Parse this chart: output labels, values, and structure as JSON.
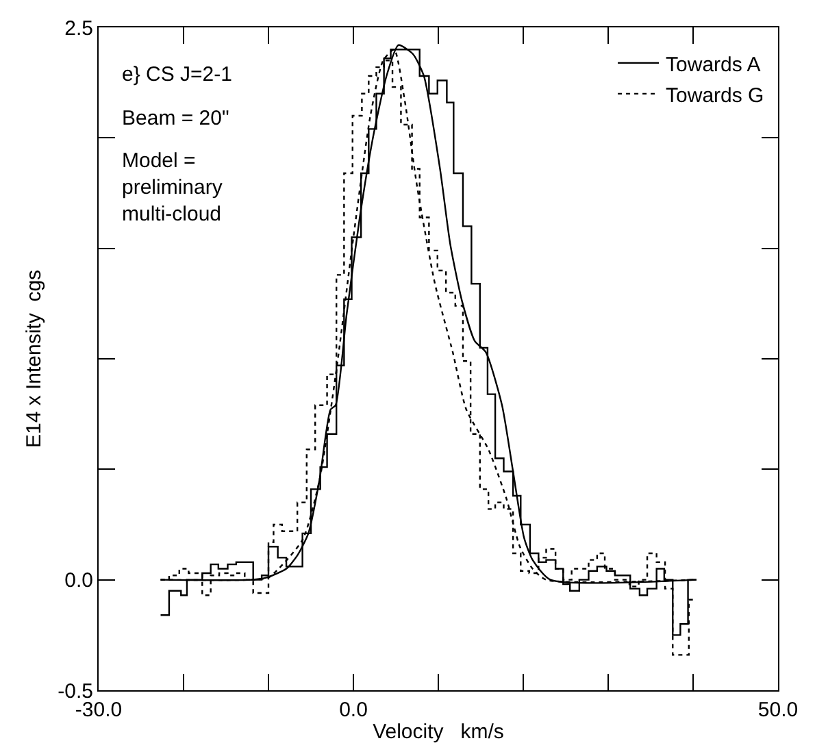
{
  "chart_data": {
    "type": "step",
    "xlabel": "Velocity   km/s",
    "ylabel": "E14 x Intensity  cgs",
    "xlim": [
      -30,
      50
    ],
    "xticks": [
      {
        "value": -30,
        "label": "-30.0"
      },
      {
        "value": -20,
        "label": null
      },
      {
        "value": -10,
        "label": null
      },
      {
        "value": 0,
        "label": "0.0"
      },
      {
        "value": 10,
        "label": null
      },
      {
        "value": 20,
        "label": null
      },
      {
        "value": 30,
        "label": null
      },
      {
        "value": 40,
        "label": null
      },
      {
        "value": 50,
        "label": "50.0"
      }
    ],
    "ylim": [
      -0.5,
      2.5
    ],
    "yticks": [
      {
        "value": -0.5,
        "label": "-0.5"
      },
      {
        "value": 0,
        "label": "0.0"
      },
      {
        "value": 0.5,
        "label": null
      },
      {
        "value": 1,
        "label": null
      },
      {
        "value": 1.5,
        "label": null
      },
      {
        "value": 2,
        "label": null
      },
      {
        "value": 2.5,
        "label": "2.5"
      }
    ],
    "legend": "top right",
    "marker": "none",
    "annotations": [
      "e} CS J=2-1",
      "Beam = 20\"",
      "Model =\npreliminary\nmulti-cloud"
    ],
    "series": [
      {
        "name": "Towards A",
        "color": "#000000",
        "line_style": "solid",
        "x": [
          -22.7,
          -21.7,
          -20.3,
          -19.6,
          -17.8,
          -16.8,
          -15.9,
          -14.8,
          -13.8,
          -11.8,
          -10.8,
          -10.0,
          -8.9,
          -7.9,
          -6.0,
          -5.0,
          -3.9,
          -3.1,
          -2.0,
          -1.1,
          -0.2,
          0.9,
          1.8,
          2.7,
          3.6,
          4.4,
          7.8,
          8.9,
          9.9,
          11.0,
          11.8,
          12.9,
          13.9,
          14.9,
          15.8,
          16.7,
          17.7,
          18.8,
          19.7,
          20.8,
          21.8,
          22.7,
          23.8,
          24.7,
          25.5,
          26.6,
          27.7,
          28.7,
          29.8,
          30.8,
          32.6,
          33.7,
          34.6,
          35.7,
          36.6,
          37.6,
          38.5,
          39.4,
          40.4
        ],
        "values": [
          -0.16,
          -0.05,
          -0.07,
          0.0,
          0.03,
          0.07,
          0.05,
          0.07,
          0.08,
          0.0,
          0.02,
          0.15,
          0.1,
          0.06,
          0.21,
          0.41,
          0.51,
          0.66,
          0.97,
          1.27,
          1.55,
          1.84,
          2.04,
          2.2,
          2.36,
          2.4,
          2.28,
          2.2,
          2.26,
          2.16,
          1.84,
          1.6,
          1.34,
          1.05,
          0.84,
          0.55,
          0.49,
          0.38,
          0.25,
          0.12,
          0.08,
          0.09,
          0.05,
          -0.02,
          -0.05,
          0.0,
          0.04,
          0.06,
          0.04,
          0.02,
          -0.04,
          -0.07,
          -0.04,
          0.05,
          0.0,
          -0.25,
          -0.2,
          0.0,
          0.0
        ]
      },
      {
        "name": "Towards G",
        "color": "#000000",
        "line_style": "dotted",
        "x": [
          -22.7,
          -21.7,
          -20.5,
          -19.4,
          -17.8,
          -16.8,
          -15.8,
          -14.8,
          -13.8,
          -12.8,
          -11.8,
          -10.0,
          -9.4,
          -8.4,
          -6.6,
          -5.5,
          -4.5,
          -3.1,
          -2.0,
          -1.1,
          -0.1,
          1.0,
          1.8,
          2.7,
          3.6,
          4.6,
          5.6,
          6.9,
          7.8,
          8.9,
          9.9,
          10.9,
          12.0,
          12.9,
          13.8,
          14.9,
          15.9,
          16.7,
          17.7,
          18.8,
          19.7,
          20.7,
          21.8,
          22.7,
          23.8,
          24.7,
          25.7,
          26.6,
          27.7,
          28.7,
          29.6,
          30.8,
          32.5,
          33.6,
          34.6,
          35.7,
          36.7,
          37.6,
          39.5,
          40.2
        ],
        "values": [
          0.0,
          0.02,
          0.05,
          0.03,
          -0.07,
          0.02,
          0.03,
          0.02,
          0.03,
          0.0,
          -0.06,
          0.17,
          0.25,
          0.22,
          0.35,
          0.59,
          0.79,
          0.93,
          1.38,
          1.84,
          2.1,
          2.2,
          2.28,
          2.32,
          2.35,
          2.23,
          2.06,
          1.86,
          1.64,
          1.49,
          1.4,
          1.3,
          1.24,
          0.99,
          0.66,
          0.41,
          0.32,
          0.35,
          0.32,
          0.12,
          0.04,
          0.03,
          0.1,
          0.14,
          0.05,
          0.0,
          0.05,
          0.05,
          0.09,
          0.12,
          0.05,
          0.0,
          -0.03,
          0.0,
          0.12,
          0.08,
          -0.04,
          -0.34,
          -0.09,
          -0.09
        ]
      },
      {
        "type": "line",
        "color": "#000000",
        "line_style": "solid",
        "x": [
          -22.7,
          -12,
          -10.2,
          -7.9,
          -6.6,
          -5.3,
          -4.0,
          -2.7,
          -2.1,
          -0.8,
          0.75,
          2.3,
          3.9,
          5.3,
          7.0,
          8.3,
          10.2,
          11.4,
          12.8,
          14.3,
          15.6,
          17.5,
          18.8,
          20.1,
          21.1,
          23.2,
          40.4
        ],
        "values": [
          0,
          0,
          0.01,
          0.05,
          0.11,
          0.21,
          0.45,
          0.77,
          0.79,
          1.2,
          1.64,
          2.0,
          2.28,
          2.42,
          2.38,
          2.28,
          1.86,
          1.52,
          1.26,
          1.08,
          1.03,
          0.79,
          0.49,
          0.19,
          0.09,
          0,
          0
        ]
      },
      {
        "type": "line",
        "color": "#000000",
        "line_style": "dotted",
        "x": [
          -22.7,
          -12,
          -10,
          -6,
          -4,
          -2,
          0,
          2,
          3.5,
          4.8,
          6.0,
          7.5,
          9.6,
          11.7,
          13.3,
          15.9,
          18.0,
          19.6,
          21.1,
          22.7,
          40.4
        ],
        "values": [
          0,
          0,
          0.01,
          0.18,
          0.45,
          0.95,
          1.55,
          2.1,
          2.35,
          2.4,
          2.18,
          1.78,
          1.34,
          1.03,
          0.77,
          0.59,
          0.37,
          0.15,
          0.05,
          0,
          0
        ]
      }
    ]
  }
}
